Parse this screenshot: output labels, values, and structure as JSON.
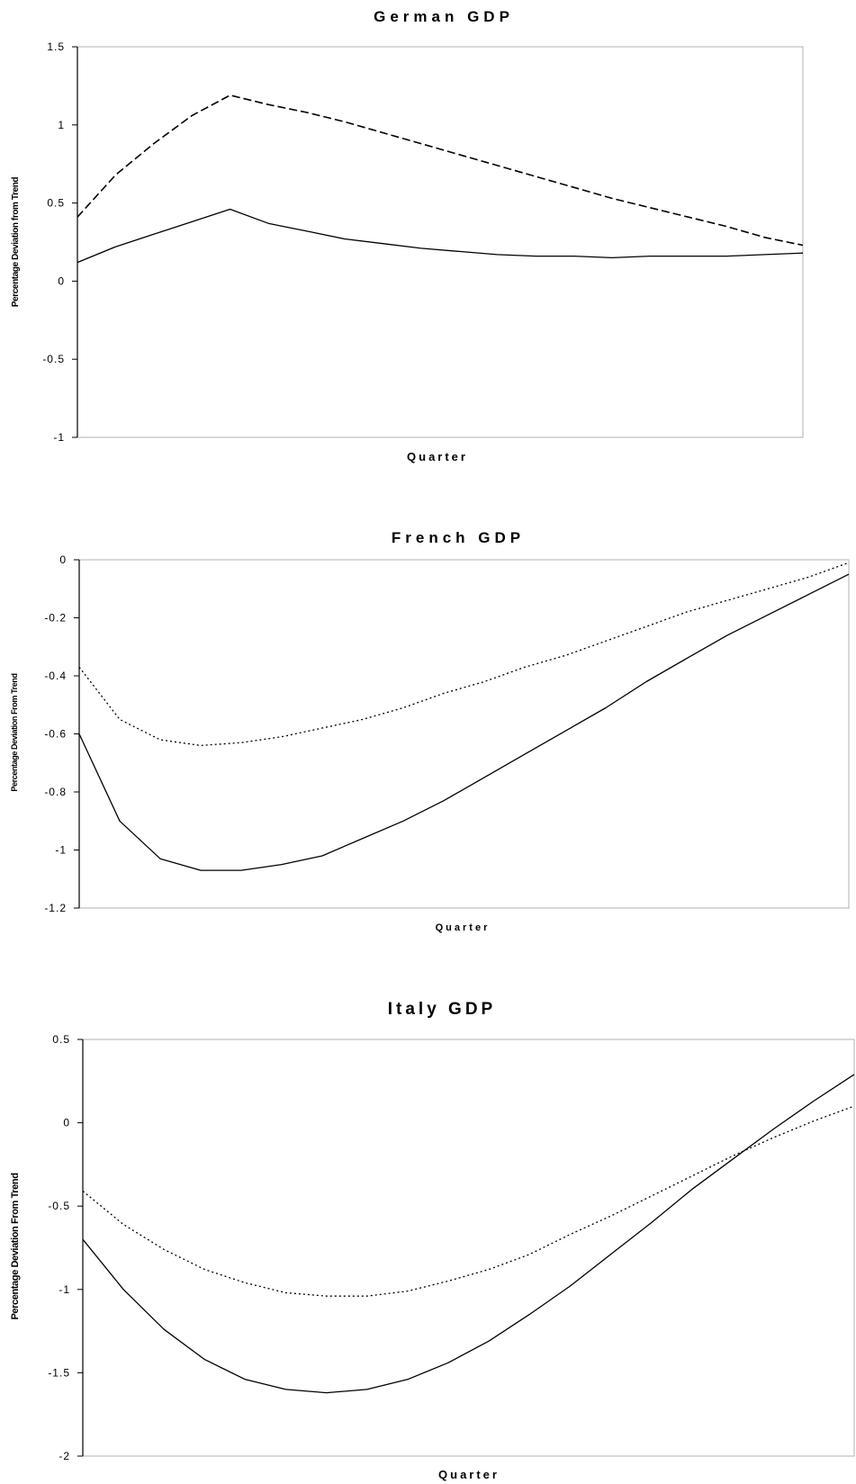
{
  "chart_data": [
    {
      "type": "line",
      "title": "German GDP",
      "xlabel": "Quarter",
      "ylabel": "Percentage Deviation from Trend",
      "ylim": [
        -1,
        1.5
      ],
      "yticks": [
        "1.5",
        "1",
        "0.5",
        "0",
        "-0.5",
        "-1"
      ],
      "ytick_values": [
        1.5,
        1,
        0.5,
        0,
        -0.5,
        -1
      ],
      "grid": false,
      "x": [
        1,
        2,
        3,
        4,
        5,
        6,
        7,
        8,
        9,
        10,
        11,
        12,
        13,
        14,
        15,
        16,
        17,
        18,
        19,
        20
      ],
      "series": [
        {
          "style": "solid",
          "values": [
            0.12,
            0.22,
            0.3,
            0.38,
            0.46,
            0.37,
            0.32,
            0.27,
            0.24,
            0.21,
            0.19,
            0.17,
            0.16,
            0.16,
            0.15,
            0.16,
            0.16,
            0.16,
            0.17,
            0.18
          ]
        },
        {
          "style": "dashed",
          "values": [
            0.41,
            0.68,
            0.88,
            1.06,
            1.19,
            1.13,
            1.08,
            1.02,
            0.95,
            0.88,
            0.81,
            0.74,
            0.67,
            0.6,
            0.53,
            0.47,
            0.41,
            0.35,
            0.28,
            0.23
          ]
        }
      ]
    },
    {
      "type": "line",
      "title": "French GDP",
      "xlabel": "Quarter",
      "ylabel": "Percentage Deviation From Trend",
      "ylim": [
        -1.2,
        0
      ],
      "yticks": [
        "0",
        "-0.2",
        "-0.4",
        "-0.6",
        "-0.8",
        "-1",
        "-1.2"
      ],
      "ytick_values": [
        0,
        -0.2,
        -0.4,
        -0.6,
        -0.8,
        -1,
        -1.2
      ],
      "grid": false,
      "x": [
        1,
        2,
        3,
        4,
        5,
        6,
        7,
        8,
        9,
        10,
        11,
        12,
        13,
        14,
        15,
        16,
        17,
        18,
        19,
        20
      ],
      "series": [
        {
          "style": "solid",
          "values": [
            -0.6,
            -0.9,
            -1.03,
            -1.07,
            -1.07,
            -1.05,
            -1.02,
            -0.96,
            -0.9,
            -0.83,
            -0.75,
            -0.67,
            -0.59,
            -0.51,
            -0.42,
            -0.34,
            -0.26,
            -0.19,
            -0.12,
            -0.05
          ]
        },
        {
          "style": "dotted",
          "values": [
            -0.37,
            -0.55,
            -0.62,
            -0.64,
            -0.63,
            -0.61,
            -0.58,
            -0.55,
            -0.51,
            -0.46,
            -0.42,
            -0.37,
            -0.33,
            -0.28,
            -0.23,
            -0.18,
            -0.14,
            -0.1,
            -0.06,
            -0.01
          ]
        }
      ]
    },
    {
      "type": "line",
      "title": "Italy GDP",
      "xlabel": "Quarter",
      "ylabel": "Percentage Deviation From Trend",
      "ylim": [
        -2,
        0.5
      ],
      "yticks": [
        "0.5",
        "0",
        "-0.5",
        "-1",
        "-1.5",
        "-2"
      ],
      "ytick_values": [
        0.5,
        0,
        -0.5,
        -1,
        -1.5,
        -2
      ],
      "grid": false,
      "x": [
        1,
        2,
        3,
        4,
        5,
        6,
        7,
        8,
        9,
        10,
        11,
        12,
        13,
        14,
        15,
        16,
        17,
        18,
        19,
        20
      ],
      "series": [
        {
          "style": "solid",
          "values": [
            -0.7,
            -1.0,
            -1.24,
            -1.42,
            -1.54,
            -1.6,
            -1.62,
            -1.6,
            -1.54,
            -1.44,
            -1.31,
            -1.15,
            -0.98,
            -0.79,
            -0.6,
            -0.4,
            -0.22,
            -0.04,
            0.13,
            0.29
          ]
        },
        {
          "style": "dotted",
          "values": [
            -0.41,
            -0.61,
            -0.76,
            -0.88,
            -0.96,
            -1.02,
            -1.04,
            -1.04,
            -1.01,
            -0.95,
            -0.88,
            -0.79,
            -0.67,
            -0.56,
            -0.44,
            -0.32,
            -0.2,
            -0.09,
            0.01,
            0.1
          ]
        }
      ]
    }
  ]
}
